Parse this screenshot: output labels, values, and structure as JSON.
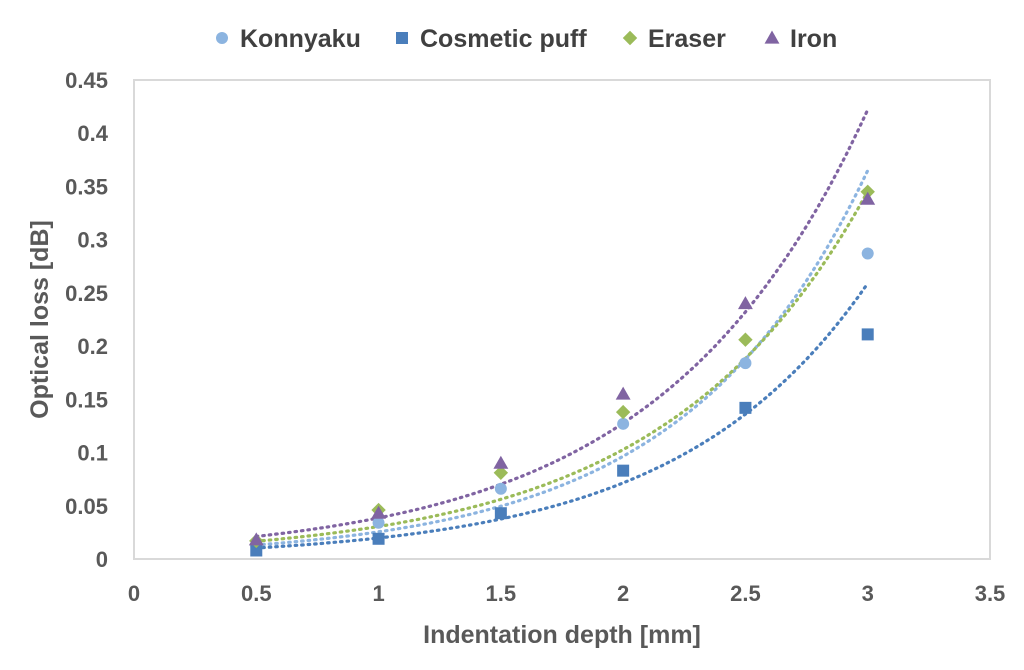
{
  "chart_data": {
    "type": "scatter",
    "title": "",
    "xlabel": "Indentation depth [mm]",
    "ylabel": "Optical loss [dB]",
    "xlim": [
      0,
      3.5
    ],
    "ylim": [
      0,
      0.45
    ],
    "x_ticks": [
      0,
      0.5,
      1,
      1.5,
      2,
      2.5,
      3,
      3.5
    ],
    "x_tick_labels": [
      "0",
      "0.5",
      "1",
      "1.5",
      "2",
      "2.5",
      "3",
      "3.5"
    ],
    "y_ticks": [
      0,
      0.05,
      0.1,
      0.15,
      0.2,
      0.25,
      0.3,
      0.35,
      0.4,
      0.45
    ],
    "y_tick_labels": [
      "0",
      "0.05",
      "0.1",
      "0.15",
      "0.2",
      "0.25",
      "0.3",
      "0.35",
      "0.4",
      "0.45"
    ],
    "grid": false,
    "legend_position": "top",
    "series": [
      {
        "name": "Konnyaku",
        "marker": "circle",
        "color": "#8CB4E0",
        "trend_color": "#8CB4E0",
        "x": [
          0.5,
          1,
          1.5,
          2,
          2.5,
          3
        ],
        "values": [
          0.012,
          0.034,
          0.066,
          0.127,
          0.184,
          0.287
        ],
        "trendline": {
          "type": "exponential",
          "a": 0.00675,
          "b": 1.33
        }
      },
      {
        "name": "Cosmetic puff",
        "marker": "square",
        "color": "#4A7EBB",
        "trend_color": "#4A7EBB",
        "x": [
          0.5,
          1,
          1.5,
          2,
          2.5,
          3
        ],
        "values": [
          0.008,
          0.019,
          0.043,
          0.083,
          0.142,
          0.211
        ],
        "trendline": {
          "type": "exponential",
          "a": 0.00545,
          "b": 1.287
        }
      },
      {
        "name": "Eraser",
        "marker": "diamond",
        "color": "#9BBB59",
        "trend_color": "#9BBB59",
        "x": [
          0.5,
          1,
          1.5,
          2,
          2.5,
          3
        ],
        "values": [
          0.017,
          0.046,
          0.081,
          0.138,
          0.206,
          0.345
        ],
        "trendline": {
          "type": "exponential",
          "a": 0.0091,
          "b": 1.212
        }
      },
      {
        "name": "Iron",
        "marker": "triangle",
        "color": "#8064A2",
        "trend_color": "#8064A2",
        "x": [
          0.5,
          1,
          1.5,
          2,
          2.5,
          3
        ],
        "values": [
          0.018,
          0.043,
          0.09,
          0.155,
          0.24,
          0.338
        ],
        "trendline": {
          "type": "exponential",
          "a": 0.01167,
          "b": 1.196
        }
      }
    ]
  }
}
